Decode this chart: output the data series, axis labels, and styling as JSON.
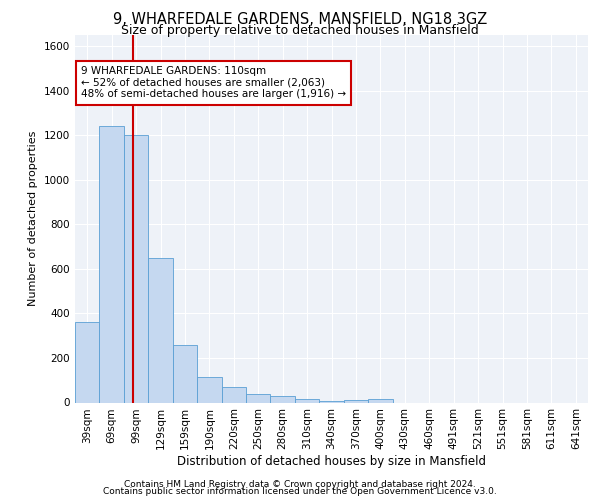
{
  "title1": "9, WHARFEDALE GARDENS, MANSFIELD, NG18 3GZ",
  "title2": "Size of property relative to detached houses in Mansfield",
  "xlabel": "Distribution of detached houses by size in Mansfield",
  "ylabel": "Number of detached properties",
  "categories": [
    "39sqm",
    "69sqm",
    "99sqm",
    "129sqm",
    "159sqm",
    "190sqm",
    "220sqm",
    "250sqm",
    "280sqm",
    "310sqm",
    "340sqm",
    "370sqm",
    "400sqm",
    "430sqm",
    "460sqm",
    "491sqm",
    "521sqm",
    "551sqm",
    "581sqm",
    "611sqm",
    "641sqm"
  ],
  "values": [
    360,
    1240,
    1200,
    650,
    260,
    115,
    70,
    38,
    27,
    15,
    8,
    10,
    14,
    0,
    0,
    0,
    0,
    0,
    0,
    0,
    0
  ],
  "bar_color": "#c5d8f0",
  "bar_edge_color": "#5a9fd4",
  "annotation_text": "9 WHARFEDALE GARDENS: 110sqm\n← 52% of detached houses are smaller (2,063)\n48% of semi-detached houses are larger (1,916) →",
  "annotation_box_color": "#ffffff",
  "annotation_box_edge": "#cc0000",
  "vline_color": "#cc0000",
  "ylim": [
    0,
    1650
  ],
  "yticks": [
    0,
    200,
    400,
    600,
    800,
    1000,
    1200,
    1400,
    1600
  ],
  "footer1": "Contains HM Land Registry data © Crown copyright and database right 2024.",
  "footer2": "Contains public sector information licensed under the Open Government Licence v3.0.",
  "background_color": "#eef2f8",
  "grid_color": "#ffffff",
  "title1_fontsize": 10.5,
  "title2_fontsize": 9.0,
  "xlabel_fontsize": 8.5,
  "ylabel_fontsize": 8.0,
  "tick_fontsize": 7.5,
  "footer_fontsize": 6.5,
  "annot_fontsize": 7.5
}
